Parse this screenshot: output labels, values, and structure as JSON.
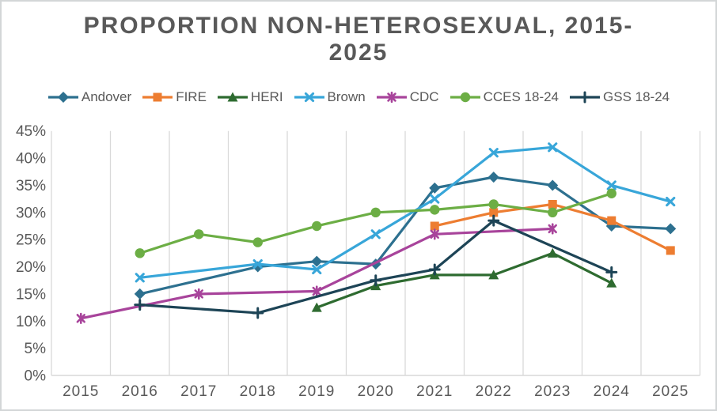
{
  "title": "PROPORTION NON-HETEROSEXUAL, 2015-2025",
  "title_lines": [
    "PROPORTION NON-HETEROSEXUAL, 2015-",
    "2025"
  ],
  "chart_data": {
    "type": "line",
    "title": "PROPORTION NON-HETEROSEXUAL, 2015-2025",
    "x": [
      2015,
      2016,
      2017,
      2018,
      2019,
      2020,
      2021,
      2022,
      2023,
      2024,
      2025
    ],
    "x_tick_labels": [
      "2015",
      "2016",
      "2017",
      "2018",
      "2019",
      "2020",
      "2021",
      "2022",
      "2023",
      "2024",
      "2025"
    ],
    "y_tick_labels": [
      "0%",
      "5%",
      "10%",
      "15%",
      "20%",
      "25%",
      "30%",
      "35%",
      "40%",
      "45%"
    ],
    "ylim": [
      0,
      45
    ],
    "y_step": 5,
    "grid": "vertical-only",
    "legend_position": "top",
    "gridline_color": "#d9d9d9",
    "label_color": "#595959",
    "series": [
      {
        "name": "Andover",
        "color": "#2d708f",
        "marker": "diamond",
        "values": [
          null,
          15,
          null,
          20,
          21,
          20.5,
          34.5,
          36.5,
          35,
          27.5,
          27
        ]
      },
      {
        "name": "FIRE",
        "color": "#ed7d31",
        "marker": "square",
        "values": [
          null,
          null,
          null,
          null,
          null,
          null,
          27.5,
          30,
          31.5,
          28.5,
          23
        ]
      },
      {
        "name": "HERI",
        "color": "#2e6b30",
        "marker": "triangle",
        "values": [
          null,
          null,
          null,
          null,
          12.5,
          16.5,
          18.5,
          18.5,
          22.5,
          17,
          null
        ]
      },
      {
        "name": "Brown",
        "color": "#38a6d9",
        "marker": "x",
        "values": [
          null,
          18,
          null,
          20.5,
          19.5,
          26,
          32.5,
          41,
          42,
          35,
          32
        ]
      },
      {
        "name": "CDC",
        "color": "#a8449b",
        "marker": "star",
        "values": [
          10.5,
          null,
          15,
          null,
          15.5,
          null,
          26,
          null,
          27,
          null,
          null
        ]
      },
      {
        "name": "CCES 18-24",
        "color": "#6cae45",
        "marker": "circle",
        "values": [
          null,
          22.5,
          26,
          24.5,
          27.5,
          30,
          30.5,
          31.5,
          30,
          33.5,
          null
        ]
      },
      {
        "name": "GSS 18-24",
        "color": "#1d4456",
        "marker": "plus",
        "values": [
          null,
          13,
          null,
          11.5,
          null,
          17.5,
          19.5,
          28.5,
          null,
          19,
          null
        ]
      }
    ]
  }
}
